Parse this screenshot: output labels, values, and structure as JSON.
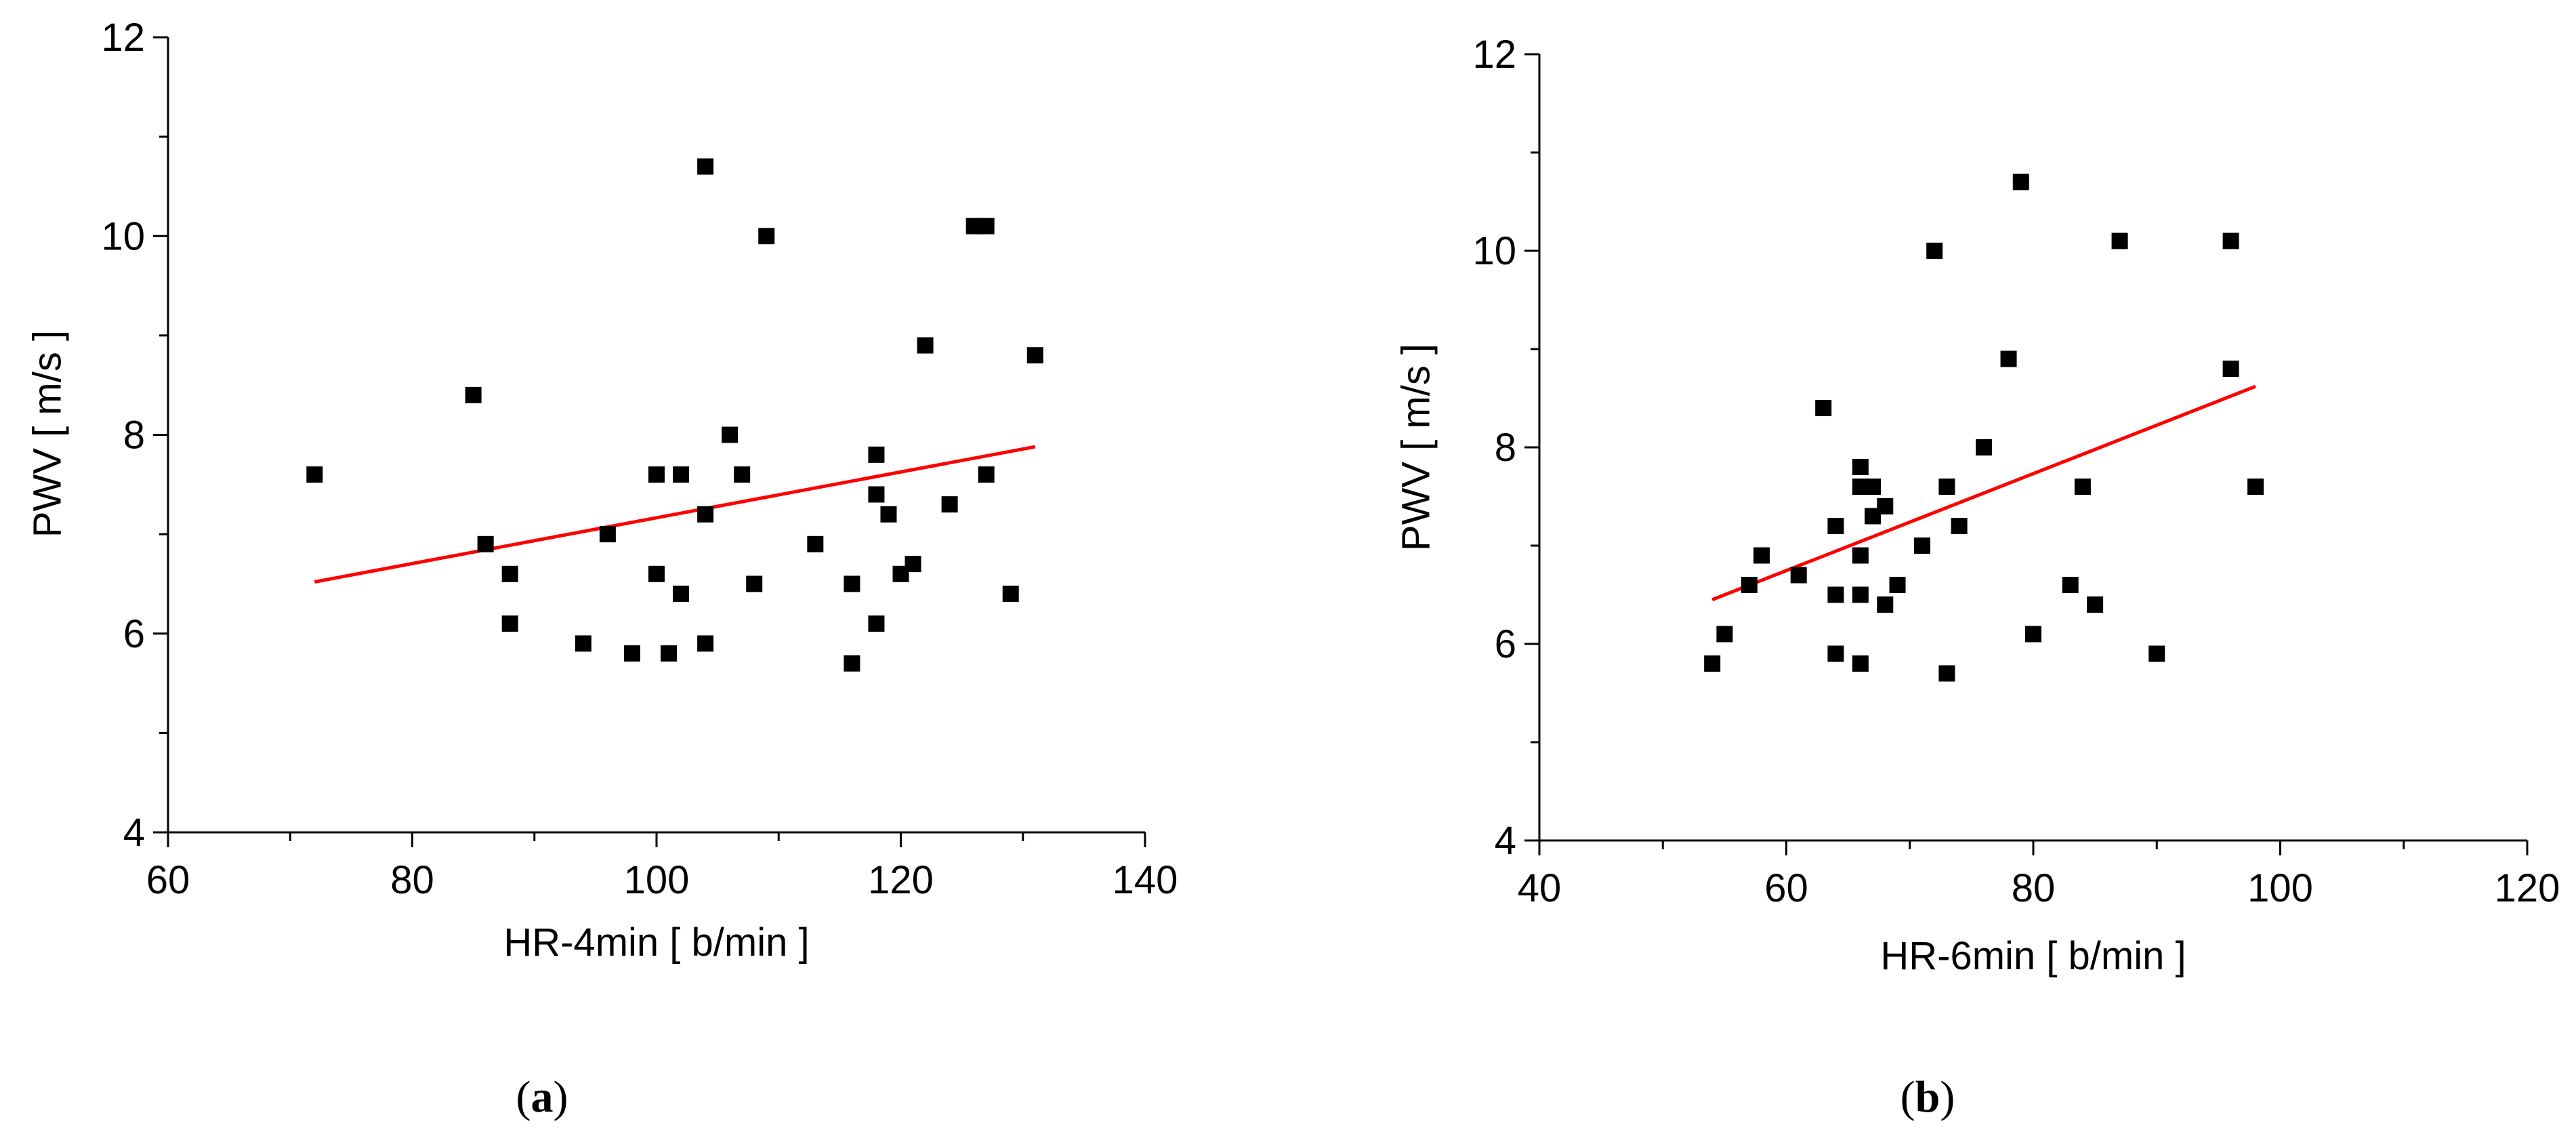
{
  "chart_data": [
    {
      "type": "scatter",
      "panel_label": "a",
      "xlabel": "HR-4min [ b/min ]",
      "ylabel": "PWV [ m/s ]",
      "xlim": [
        60,
        140
      ],
      "ylim": [
        4,
        12
      ],
      "xticks": [
        60,
        80,
        100,
        120,
        140
      ],
      "yticks": [
        4,
        6,
        8,
        10,
        12
      ],
      "xticks_minor_step": 10,
      "yticks_minor_step": 1,
      "points": [
        [
          72,
          7.6
        ],
        [
          85,
          8.4
        ],
        [
          86,
          6.9
        ],
        [
          88,
          6.6
        ],
        [
          88,
          6.1
        ],
        [
          94,
          5.9
        ],
        [
          96,
          7.0
        ],
        [
          98,
          5.8
        ],
        [
          100,
          7.6
        ],
        [
          100,
          6.6
        ],
        [
          101,
          5.8
        ],
        [
          102,
          7.6
        ],
        [
          102,
          6.4
        ],
        [
          104,
          10.7
        ],
        [
          104,
          7.2
        ],
        [
          104,
          5.9
        ],
        [
          106,
          8.0
        ],
        [
          107,
          7.6
        ],
        [
          108,
          6.5
        ],
        [
          109,
          10.0
        ],
        [
          113,
          6.9
        ],
        [
          116,
          6.5
        ],
        [
          116,
          5.7
        ],
        [
          118,
          7.8
        ],
        [
          118,
          7.4
        ],
        [
          118,
          6.1
        ],
        [
          119,
          7.2
        ],
        [
          120,
          6.6
        ],
        [
          121,
          6.7
        ],
        [
          122,
          8.9
        ],
        [
          124,
          7.3
        ],
        [
          126,
          10.1
        ],
        [
          127,
          10.1
        ],
        [
          127,
          7.6
        ],
        [
          129,
          6.4
        ],
        [
          131,
          8.8
        ]
      ],
      "fit_line": {
        "x": [
          72,
          131
        ],
        "y": [
          6.52,
          7.88
        ],
        "color": "#ff0000"
      },
      "marker_color": "#000000"
    },
    {
      "type": "scatter",
      "panel_label": "b",
      "xlabel": "HR-6min [ b/min ]",
      "ylabel": "PWV [ m/s ]",
      "xlim": [
        40,
        120
      ],
      "ylim": [
        4,
        12
      ],
      "xticks": [
        40,
        60,
        80,
        100,
        120
      ],
      "yticks": [
        4,
        6,
        8,
        10,
        12
      ],
      "xticks_minor_step": 10,
      "yticks_minor_step": 1,
      "points": [
        [
          54,
          5.8
        ],
        [
          55,
          6.1
        ],
        [
          57,
          6.6
        ],
        [
          58,
          6.9
        ],
        [
          61,
          6.7
        ],
        [
          63,
          8.4
        ],
        [
          64,
          7.2
        ],
        [
          64,
          6.5
        ],
        [
          64,
          5.9
        ],
        [
          66,
          7.8
        ],
        [
          66,
          7.6
        ],
        [
          66,
          6.9
        ],
        [
          66,
          6.5
        ],
        [
          66,
          5.8
        ],
        [
          67,
          7.6
        ],
        [
          67,
          7.3
        ],
        [
          68,
          7.4
        ],
        [
          68,
          6.4
        ],
        [
          69,
          6.6
        ],
        [
          71,
          7.0
        ],
        [
          72,
          10.0
        ],
        [
          73,
          7.6
        ],
        [
          73,
          5.7
        ],
        [
          74,
          7.2
        ],
        [
          76,
          8.0
        ],
        [
          78,
          8.9
        ],
        [
          79,
          10.7
        ],
        [
          80,
          6.1
        ],
        [
          83,
          6.6
        ],
        [
          84,
          7.6
        ],
        [
          85,
          6.4
        ],
        [
          87,
          10.1
        ],
        [
          90,
          5.9
        ],
        [
          96,
          10.1
        ],
        [
          96,
          8.8
        ],
        [
          98,
          7.6
        ]
      ],
      "fit_line": {
        "x": [
          54,
          98
        ],
        "y": [
          6.45,
          8.62
        ],
        "color": "#ff0000"
      },
      "marker_color": "#000000"
    }
  ]
}
